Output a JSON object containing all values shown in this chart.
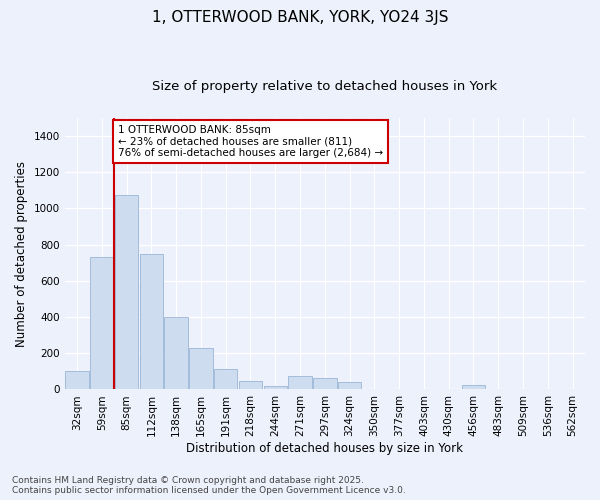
{
  "title": "1, OTTERWOOD BANK, YORK, YO24 3JS",
  "subtitle": "Size of property relative to detached houses in York",
  "xlabel": "Distribution of detached houses by size in York",
  "ylabel": "Number of detached properties",
  "categories": [
    "32sqm",
    "59sqm",
    "85sqm",
    "112sqm",
    "138sqm",
    "165sqm",
    "191sqm",
    "218sqm",
    "244sqm",
    "271sqm",
    "297sqm",
    "324sqm",
    "350sqm",
    "377sqm",
    "403sqm",
    "430sqm",
    "456sqm",
    "483sqm",
    "509sqm",
    "536sqm",
    "562sqm"
  ],
  "values": [
    100,
    730,
    1075,
    750,
    400,
    230,
    115,
    45,
    20,
    75,
    65,
    40,
    0,
    0,
    0,
    0,
    22,
    0,
    0,
    0,
    0
  ],
  "bar_color": "#cddcee",
  "bar_edge_color": "#9ab5d5",
  "property_line_bar_index": 2,
  "annotation_title": "1 OTTERWOOD BANK: 85sqm",
  "annotation_line1": "← 23% of detached houses are smaller (811)",
  "annotation_line2": "76% of semi-detached houses are larger (2,684) →",
  "annotation_box_facecolor": "#ffffff",
  "annotation_box_edgecolor": "#cc0000",
  "line_color": "#cc0000",
  "ylim": [
    0,
    1500
  ],
  "yticks": [
    0,
    200,
    400,
    600,
    800,
    1000,
    1200,
    1400
  ],
  "background_color": "#edf1fb",
  "grid_color": "#ffffff",
  "footer_line1": "Contains HM Land Registry data © Crown copyright and database right 2025.",
  "footer_line2": "Contains public sector information licensed under the Open Government Licence v3.0.",
  "title_fontsize": 11,
  "subtitle_fontsize": 9.5,
  "axis_label_fontsize": 8.5,
  "tick_fontsize": 7.5,
  "annotation_fontsize": 7.5,
  "footer_fontsize": 6.5
}
